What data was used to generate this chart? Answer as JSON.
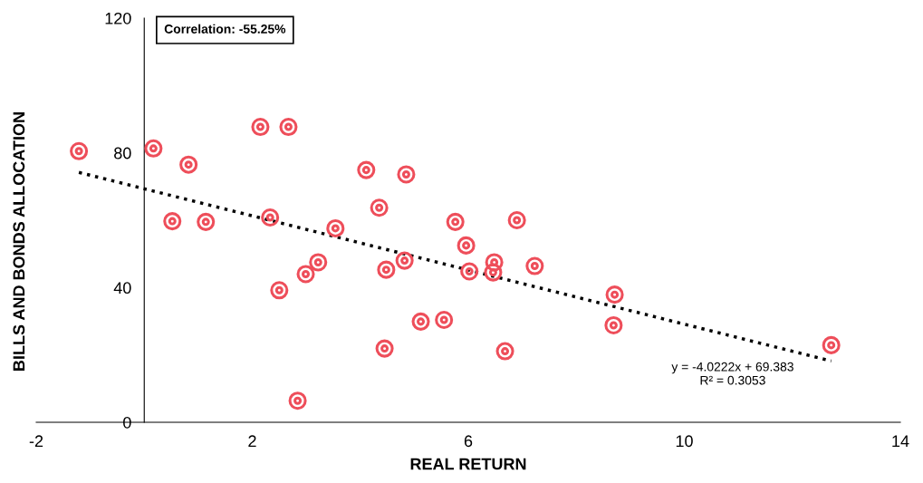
{
  "chart_data": {
    "type": "scatter",
    "xlabel": "REAL RETURN",
    "ylabel": "BILLS AND BONDS ALLOCATION",
    "xlim": [
      -2,
      14
    ],
    "xticks": [
      -2,
      2,
      6,
      10,
      14
    ],
    "ylim": [
      0,
      120
    ],
    "yticks": [
      0,
      40,
      80,
      120
    ],
    "grid": false,
    "legend": false,
    "series": [
      {
        "color": "#ee4e5a",
        "marker": "circle",
        "x": [
          -1.21,
          0.17,
          0.82,
          0.52,
          1.14,
          2.15,
          2.67,
          2.33,
          2.5,
          2.84,
          2.99,
          3.22,
          3.54,
          4.11,
          4.35,
          4.48,
          4.45,
          4.85,
          4.82,
          5.12,
          5.55,
          5.76,
          5.96,
          6.02,
          6.48,
          6.46,
          6.68,
          6.9,
          7.23,
          8.71,
          8.69,
          12.72
        ],
        "values": [
          80.5,
          81.3,
          76.5,
          59.7,
          59.5,
          87.7,
          87.7,
          60.8,
          39.2,
          6.4,
          44,
          47.5,
          57.6,
          74.9,
          63.7,
          45.3,
          21.9,
          73.6,
          48,
          29.9,
          30.4,
          59.5,
          52.5,
          44.8,
          47.5,
          44.5,
          21.1,
          60,
          46.4,
          37.9,
          28.8,
          22.9
        ]
      },
      {
        "type": "line",
        "color": "#000000",
        "marker": "none",
        "line_style": "dotted",
        "x": [
          -1.21,
          12.72
        ],
        "values": [
          74.2,
          18.2
        ]
      }
    ],
    "annotations": [
      "Correlation: -55.25%",
      "y = -4.0222x + 69.383\nR² = 0.3053"
    ]
  }
}
